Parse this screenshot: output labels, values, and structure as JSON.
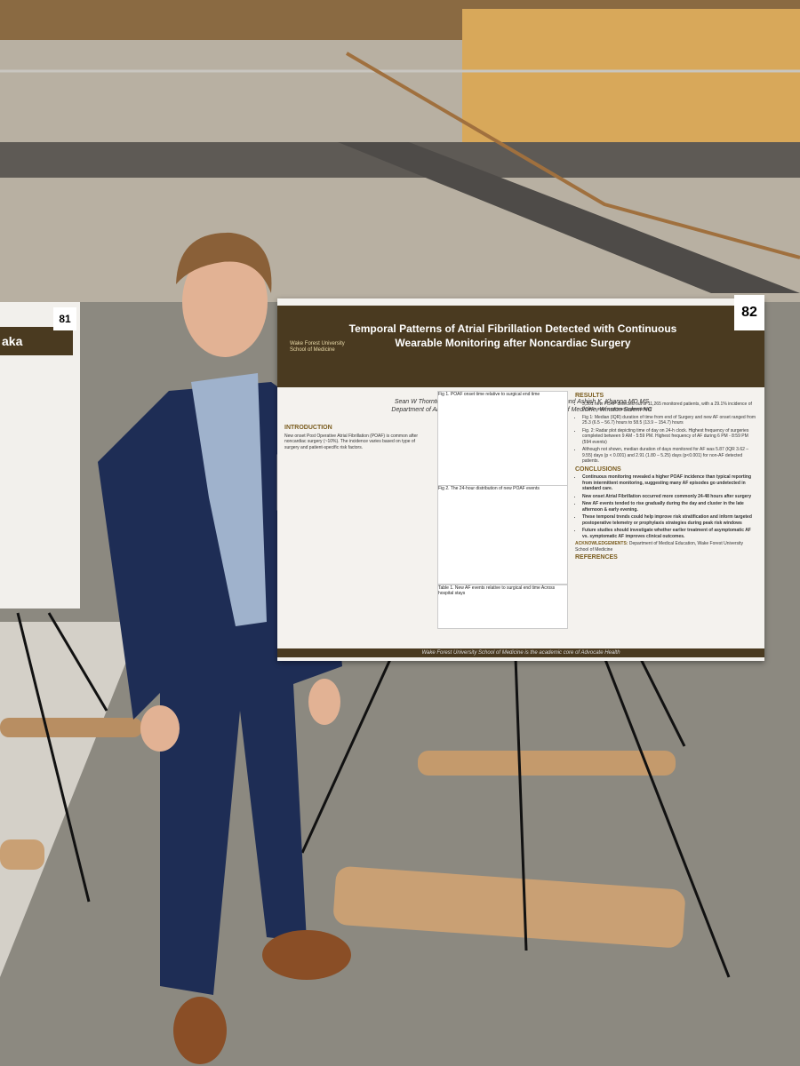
{
  "poster": {
    "number": "82",
    "title": "Temporal Patterns of Atrial Fibrillation Detected with Continuous Wearable Monitoring after Noncardiac Surgery",
    "institution": "Wake Forest University School of Medicine",
    "authors": "Sean W Thornton BS, Amit K. Saha PhD, Ankita Prakash BS, and Ashish K. Khanna MD MS",
    "department": "Department of Anesthesiology, Wake Forest University School of Medicine, Winston Salem NC",
    "introduction": {
      "heading": "INTRODUCTION",
      "text": "New onset Post Operative Atrial Fibrillation (POAF) is common after noncardiac surgery (~10%). The incidence varies based on type of surgery and patient-specific risk factors."
    },
    "figures": [
      "Fig 1. POAF onset time relative to surgical end time",
      "Fig 2. The 24-hour distribution of new POAF events"
    ],
    "table_caption": "Table 1. New AF events relative to surgical end time Across hospital stays",
    "results": {
      "heading": "RESULTS",
      "items": [
        "3,301 new POAF detected out of 11,265 monitored patients, with a 29.1% incidence of POAF under continuous monitoring",
        "Fig 1: Median (IQR) duration of time from end of Surgery and new AF onset ranged from 25.3 (6.5 – 56.7) hours to 58.5 (13.9 – 154.7) hours",
        "Fig. 2: Radar plot depicting time of day on 24-h clock. Highest frequency of surgeries completed between 9 AM - 5:59 PM. Highest frequency of AF during 6 PM - 8:59 PM (594 events)",
        "Although not shown, median duration of days monitored for AF was 5.87 (IQR 3.62 – 9.55) days (p < 0.001) and 2.91 (1.80 – 5.25) days (p<0.001) for non-AF detected patients."
      ]
    },
    "conclusions": {
      "heading": "CONCLUSIONS",
      "items": [
        "Continuous monitoring revealed a higher POAF incidence than typical reporting from intermittent monitoring, suggesting many AF episodes go undetected in standard care.",
        "New onset Atrial Fibrillation occurred more commonly 24-48 hours after surgery",
        "New AF events tended to rise gradually during the day and cluster in the late afternoon & early evening.",
        "These temporal trends could help improve risk stratification and inform targeted postoperative telemetry or prophylaxis strategies during peak risk windows",
        "Future studies should investigate whether earlier treatment of asymptomatic AF vs. symptomatic AF improves clinical outcomes."
      ]
    },
    "acknowledgements": {
      "heading": "ACKNOWLEDGEMENTS:",
      "text": "Department of Medical Education, Wake Forest University School of Medicine"
    },
    "references_heading": "REFERENCES",
    "footer": "Wake Forest University School of Medicine is the academic core of Advocate Health"
  },
  "left_poster": {
    "number": "81",
    "title_fragment": "aka"
  }
}
